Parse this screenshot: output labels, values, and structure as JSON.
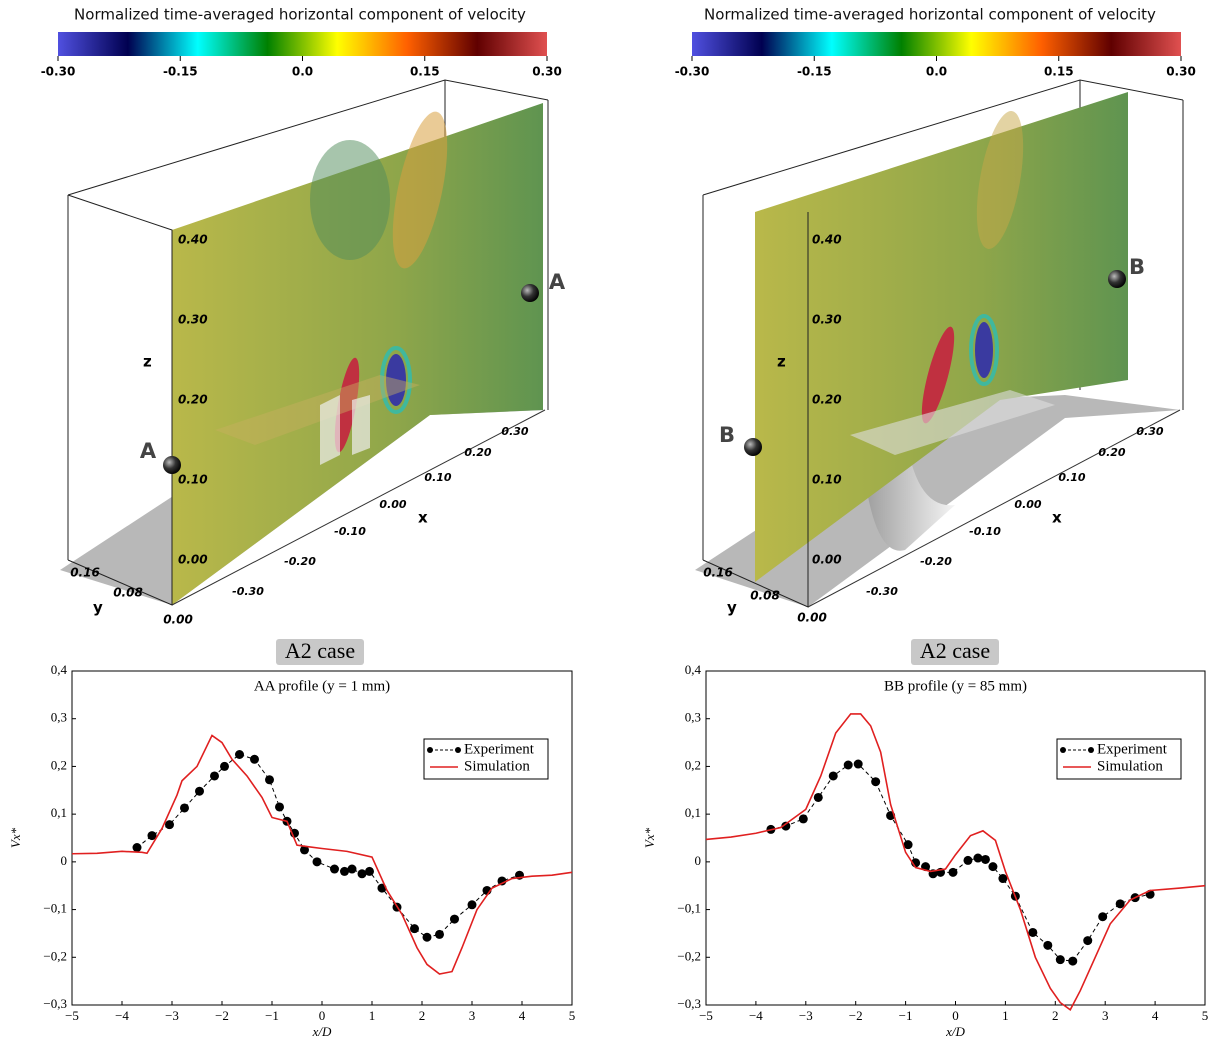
{
  "renders": [
    {
      "colorbar_title": "Normalized time-averaged horizontal component of velocity",
      "colormap": [
        "#5050e0",
        "#000050",
        "#00ffff",
        "#008000",
        "#ffff00",
        "#ff6000",
        "#600000",
        "#e05050"
      ],
      "colorbar_lim": [
        -0.3,
        0.3
      ],
      "colorbar_ticks": [
        {
          "value": -0.3,
          "label": "-0.30"
        },
        {
          "value": -0.15,
          "label": "-0.15"
        },
        {
          "value": 0,
          "label": "0.0"
        },
        {
          "value": 0.15,
          "label": "0.15"
        },
        {
          "value": 0.3,
          "label": "0.30"
        }
      ],
      "z_label": "z",
      "z_ticks": [
        "0.40",
        "0.30",
        "0.20",
        "0.10",
        "0.00"
      ],
      "x_label": "x",
      "x_ticks": [
        "-0.30",
        "-0.20",
        "-0.10",
        "0.00",
        "0.10",
        "0.20",
        "0.30"
      ],
      "y_label": "y",
      "y_ticks": [
        "0.16",
        "0.08",
        "0.00"
      ],
      "markers": [
        "A",
        "A"
      ],
      "caption": "A2 case"
    },
    {
      "colorbar_title": "Normalized time-averaged horizontal component of velocity",
      "colormap": [
        "#5050e0",
        "#000050",
        "#00ffff",
        "#008000",
        "#ffff00",
        "#ff6000",
        "#600000",
        "#e05050"
      ],
      "colorbar_lim": [
        -0.3,
        0.3
      ],
      "colorbar_ticks": [
        {
          "value": -0.3,
          "label": "-0.30"
        },
        {
          "value": -0.15,
          "label": "-0.15"
        },
        {
          "value": 0,
          "label": "0.0"
        },
        {
          "value": 0.15,
          "label": "0.15"
        },
        {
          "value": 0.3,
          "label": "0.30"
        }
      ],
      "z_label": "z",
      "z_ticks": [
        "0.40",
        "0.30",
        "0.20",
        "0.10",
        "0.00"
      ],
      "x_label": "x",
      "x_ticks": [
        "-0.30",
        "-0.20",
        "-0.10",
        "0.00",
        "0.10",
        "0.20",
        "0.30"
      ],
      "y_label": "y",
      "y_ticks": [
        "0.16",
        "0.08",
        "0.00"
      ],
      "markers": [
        "B",
        "B"
      ],
      "caption": "A2 case"
    }
  ],
  "chart_data": [
    {
      "type": "line",
      "title": "AA profile (y = 1 mm)",
      "xlabel": "x/D",
      "ylabel": "Vx*",
      "xlim": [
        -5,
        5
      ],
      "ylim": [
        -0.3,
        0.4
      ],
      "xticks": [
        {
          "value": -5,
          "label": "−5"
        },
        {
          "value": -4,
          "label": "−4"
        },
        {
          "value": -3,
          "label": "−3"
        },
        {
          "value": -2,
          "label": "−2"
        },
        {
          "value": -1,
          "label": "−1"
        },
        0,
        1,
        2,
        3,
        4,
        5
      ],
      "yticks": [
        {
          "value": -0.3,
          "label": "−0,3"
        },
        {
          "value": -0.2,
          "label": "−0,2"
        },
        {
          "value": -0.1,
          "label": "−0,1"
        },
        0,
        {
          "value": 0.1,
          "label": "0,1"
        },
        {
          "value": 0.2,
          "label": "0,2"
        },
        {
          "value": 0.3,
          "label": "0,3"
        },
        {
          "value": 0.4,
          "label": "0,4"
        }
      ],
      "legend": "upper right",
      "grid": false,
      "series": [
        {
          "name": "Experiment",
          "color": "#000000",
          "linestyle": "dashed",
          "marker": "o",
          "x": [
            -3.7,
            -3.4,
            -3.05,
            -2.75,
            -2.45,
            -2.15,
            -1.95,
            -1.65,
            -1.35,
            -1.05,
            -0.85,
            -0.7,
            -0.55,
            -0.35,
            -0.1,
            0.25,
            0.45,
            0.6,
            0.8,
            0.95,
            1.2,
            1.5,
            1.85,
            2.1,
            2.35,
            2.65,
            3.0,
            3.3,
            3.6,
            3.95
          ],
          "values": [
            0.03,
            0.055,
            0.078,
            0.113,
            0.148,
            0.18,
            0.2,
            0.225,
            0.215,
            0.172,
            0.115,
            0.085,
            0.06,
            0.025,
            0.0,
            -0.015,
            -0.02,
            -0.015,
            -0.025,
            -0.02,
            -0.055,
            -0.095,
            -0.14,
            -0.158,
            -0.152,
            -0.12,
            -0.09,
            -0.06,
            -0.04,
            -0.028
          ]
        },
        {
          "name": "Simulation",
          "color": "#e02020",
          "linestyle": "solid",
          "marker": null,
          "x": [
            -5,
            -4.5,
            -4,
            -3.6,
            -3.5,
            -3.2,
            -2.9,
            -2.8,
            -2.5,
            -2.2,
            -2.0,
            -1.8,
            -1.5,
            -1.2,
            -1.0,
            -0.7,
            -0.5,
            -0.3,
            0,
            0.5,
            1.0,
            1.3,
            1.6,
            1.9,
            2.1,
            2.35,
            2.6,
            2.8,
            3.1,
            3.4,
            3.8,
            4.2,
            4.6,
            5
          ],
          "values": [
            0.017,
            0.018,
            0.022,
            0.02,
            0.018,
            0.07,
            0.14,
            0.17,
            0.2,
            0.265,
            0.25,
            0.215,
            0.18,
            0.135,
            0.093,
            0.085,
            0.035,
            0.032,
            0.028,
            0.022,
            0.01,
            -0.06,
            -0.11,
            -0.18,
            -0.215,
            -0.235,
            -0.23,
            -0.18,
            -0.1,
            -0.055,
            -0.035,
            -0.03,
            -0.028,
            -0.022
          ]
        }
      ]
    },
    {
      "type": "line",
      "title": "BB profile (y = 85 mm)",
      "xlabel": "x/D",
      "ylabel": "Vx*",
      "xlim": [
        -5,
        5
      ],
      "ylim": [
        -0.3,
        0.4
      ],
      "xticks": [
        {
          "value": -5,
          "label": "−5"
        },
        {
          "value": -4,
          "label": "−4"
        },
        {
          "value": -3,
          "label": "−3"
        },
        {
          "value": -2,
          "label": "−2"
        },
        {
          "value": -1,
          "label": "−1"
        },
        0,
        1,
        2,
        3,
        4,
        5
      ],
      "yticks": [
        {
          "value": -0.3,
          "label": "−0,3"
        },
        {
          "value": -0.2,
          "label": "−0,2"
        },
        {
          "value": -0.1,
          "label": "−0,1"
        },
        0,
        {
          "value": 0.1,
          "label": "0,1"
        },
        {
          "value": 0.2,
          "label": "0,2"
        },
        {
          "value": 0.3,
          "label": "0,3"
        },
        {
          "value": 0.4,
          "label": "0,4"
        }
      ],
      "legend": "upper right",
      "grid": false,
      "series": [
        {
          "name": "Experiment",
          "color": "#000000",
          "linestyle": "dashed",
          "marker": "o",
          "x": [
            -3.7,
            -3.4,
            -3.05,
            -2.75,
            -2.45,
            -2.15,
            -1.95,
            -1.6,
            -1.3,
            -0.95,
            -0.8,
            -0.6,
            -0.45,
            -0.3,
            -0.05,
            0.25,
            0.45,
            0.6,
            0.75,
            0.95,
            1.2,
            1.55,
            1.85,
            2.1,
            2.35,
            2.65,
            2.95,
            3.3,
            3.6,
            3.9
          ],
          "values": [
            0.068,
            0.075,
            0.09,
            0.135,
            0.18,
            0.203,
            0.205,
            0.168,
            0.097,
            0.036,
            -0.002,
            -0.01,
            -0.025,
            -0.022,
            -0.022,
            0.003,
            0.008,
            0.005,
            -0.01,
            -0.035,
            -0.072,
            -0.148,
            -0.175,
            -0.205,
            -0.208,
            -0.165,
            -0.115,
            -0.088,
            -0.075,
            -0.068
          ]
        },
        {
          "name": "Simulation",
          "color": "#e02020",
          "linestyle": "solid",
          "marker": null,
          "x": [
            -5,
            -4.5,
            -4,
            -3.5,
            -3.0,
            -2.7,
            -2.4,
            -2.1,
            -1.9,
            -1.7,
            -1.5,
            -1.3,
            -1.0,
            -0.8,
            -0.5,
            -0.2,
            0.0,
            0.3,
            0.55,
            0.8,
            1.0,
            1.3,
            1.6,
            1.9,
            2.1,
            2.3,
            2.5,
            2.8,
            3.1,
            3.5,
            3.9,
            4.5,
            5
          ],
          "values": [
            0.047,
            0.052,
            0.06,
            0.072,
            0.11,
            0.18,
            0.27,
            0.31,
            0.31,
            0.285,
            0.23,
            0.12,
            0.02,
            -0.012,
            -0.02,
            -0.015,
            0.015,
            0.055,
            0.065,
            0.045,
            -0.02,
            -0.1,
            -0.2,
            -0.265,
            -0.295,
            -0.31,
            -0.27,
            -0.2,
            -0.13,
            -0.08,
            -0.06,
            -0.055,
            -0.05
          ]
        }
      ]
    }
  ]
}
